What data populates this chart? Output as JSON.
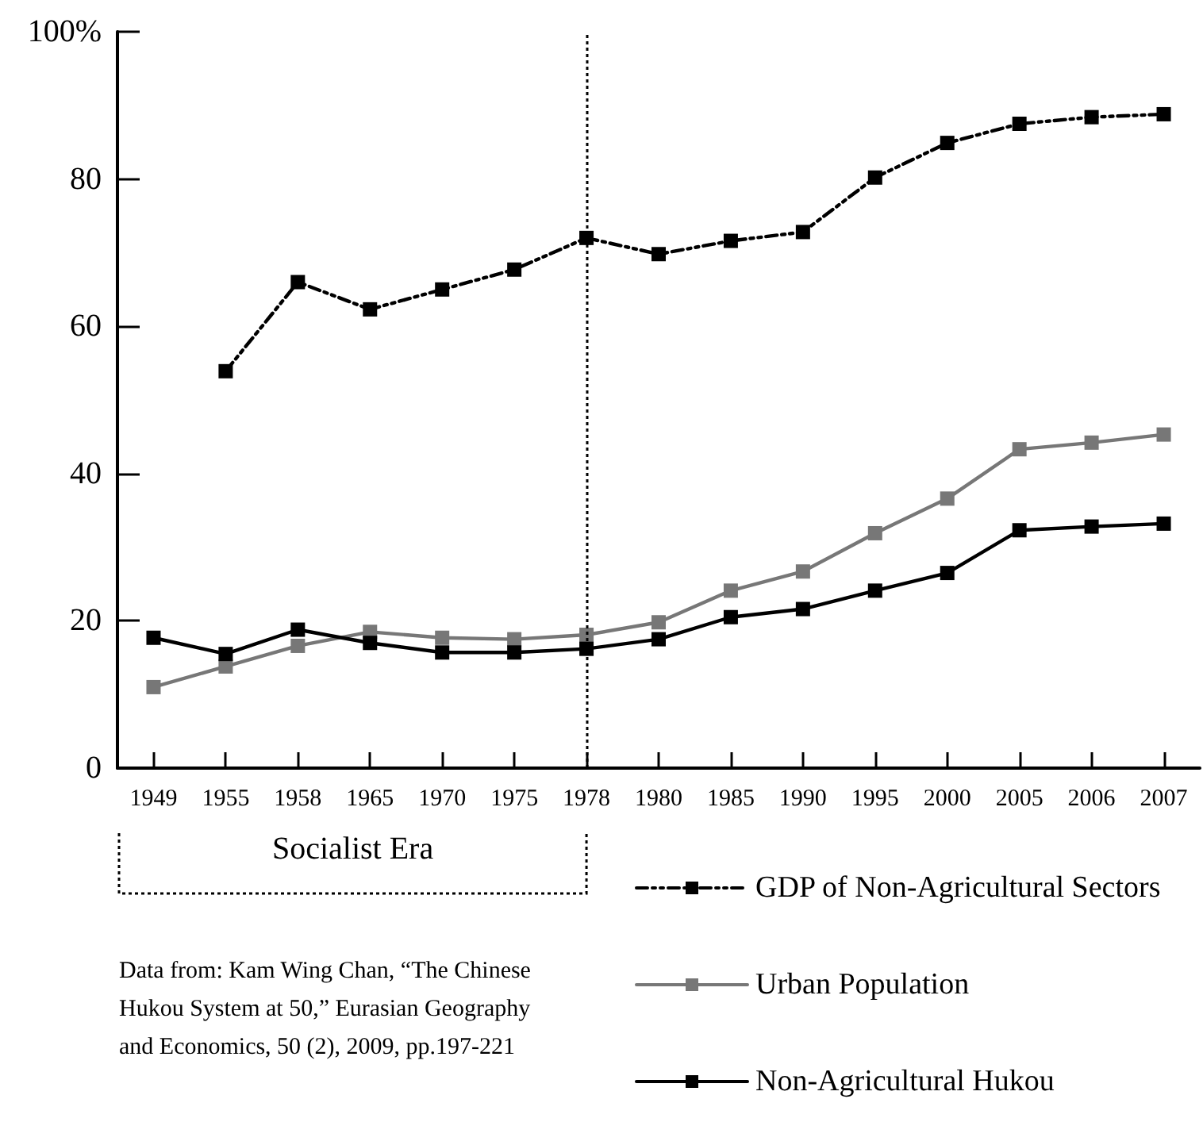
{
  "chart_data": {
    "type": "line",
    "categories": [
      "1949",
      "1955",
      "1958",
      "1965",
      "1970",
      "1975",
      "1978",
      "1980",
      "1985",
      "1990",
      "1995",
      "2000",
      "2005",
      "2006",
      "2007"
    ],
    "series": [
      {
        "name": "GDP of Non-Agricultural Sectors",
        "color": "#000000",
        "line_style": "dashed",
        "values": [
          null,
          53.9,
          66,
          62.3,
          65,
          67.7,
          72,
          69.8,
          71.6,
          72.8,
          80.2,
          84.9,
          87.5,
          88.4,
          88.8
        ]
      },
      {
        "name": "Urban Population",
        "color": "#777777",
        "line_style": "solid",
        "values": [
          11,
          13.8,
          16.6,
          18.5,
          17.7,
          17.5,
          18.1,
          19.8,
          24.1,
          26.7,
          31.9,
          36.6,
          43.3,
          44.2,
          45.3
        ]
      },
      {
        "name": "Non-Agricultural Hukou",
        "color": "#000000",
        "line_style": "solid",
        "values": [
          17.7,
          15.5,
          18.8,
          17,
          15.7,
          15.7,
          16.2,
          17.5,
          20.5,
          21.6,
          24.1,
          26.5,
          32.3,
          32.8,
          33.2
        ]
      }
    ],
    "ylim": [
      0,
      100
    ],
    "yticks": [
      0,
      20,
      40,
      60,
      80,
      {
        "value": 100,
        "label": "100%"
      }
    ],
    "ref_lines": [
      {
        "axis": "x",
        "value": "1978",
        "line_style": "dotted",
        "color": "#000000"
      }
    ],
    "annotations": [
      "Socialist Era",
      "Data from: Kam Wing Chan, “The Chinese Hukou System at 50,” Eurasian Geography and Economics, 50 (2), 2009, pp.197-221"
    ],
    "marker": "square",
    "grid": false,
    "legend": "bottom right"
  }
}
